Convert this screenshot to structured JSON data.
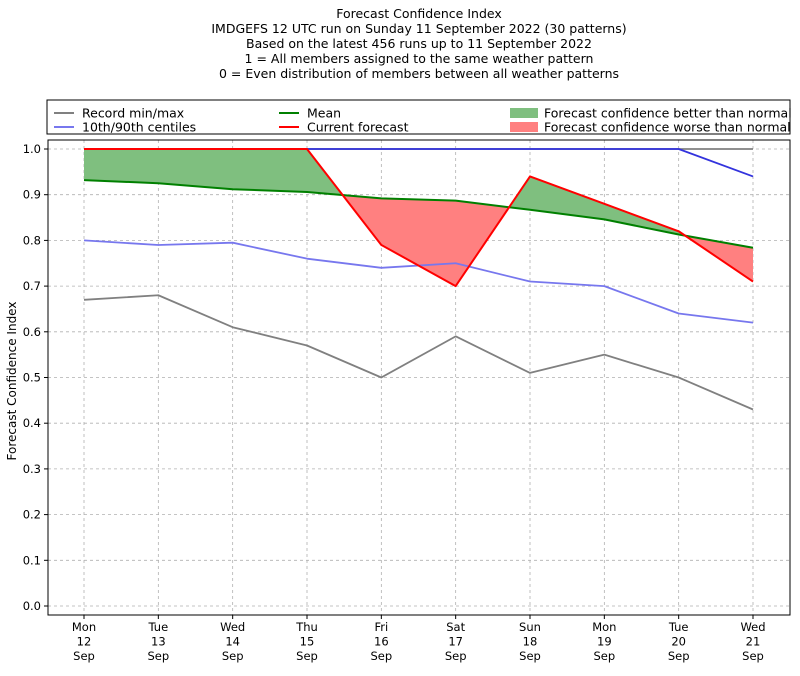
{
  "chart_data": {
    "type": "line",
    "title_lines": [
      "Forecast Confidence Index",
      "IMDGEFS 12 UTC run on Sunday 11 September 2022 (30 patterns)",
      "Based on the latest 456 runs up to 11 September 2022",
      "1 = All members assigned to the same weather pattern",
      "0 = Even distribution of members between all weather patterns"
    ],
    "ylabel": "Forecast Confidence Index",
    "xlabel": "",
    "ylim": [
      0.0,
      1.0
    ],
    "yticks": [
      "0.0",
      "0.1",
      "0.2",
      "0.3",
      "0.4",
      "0.5",
      "0.6",
      "0.7",
      "0.8",
      "0.9",
      "1.0"
    ],
    "grid": true,
    "categories": [
      [
        "Mon",
        "12",
        "Sep"
      ],
      [
        "Tue",
        "13",
        "Sep"
      ],
      [
        "Wed",
        "14",
        "Sep"
      ],
      [
        "Thu",
        "15",
        "Sep"
      ],
      [
        "Fri",
        "16",
        "Sep"
      ],
      [
        "Sat",
        "17",
        "Sep"
      ],
      [
        "Sun",
        "18",
        "Sep"
      ],
      [
        "Mon",
        "19",
        "Sep"
      ],
      [
        "Tue",
        "20",
        "Sep"
      ],
      [
        "Wed",
        "21",
        "Sep"
      ]
    ],
    "series": [
      {
        "name": "Record min/max",
        "role": "record_min",
        "color": "#808080",
        "values": [
          0.67,
          0.68,
          0.61,
          0.57,
          0.5,
          0.59,
          0.51,
          0.55,
          0.5,
          0.43
        ]
      },
      {
        "name": "Record min/max",
        "role": "record_max",
        "color": "#808080",
        "values": [
          1.0,
          1.0,
          1.0,
          1.0,
          1.0,
          1.0,
          1.0,
          1.0,
          1.0,
          1.0
        ]
      },
      {
        "name": "10th/90th centiles",
        "role": "p10",
        "color": "#7777ee",
        "values": [
          0.8,
          0.79,
          0.795,
          0.76,
          0.74,
          0.75,
          0.71,
          0.7,
          0.64,
          0.62
        ]
      },
      {
        "name": "10th/90th centiles",
        "role": "p90",
        "color": "#3333dd",
        "values": [
          1.0,
          1.0,
          1.0,
          1.0,
          1.0,
          1.0,
          1.0,
          1.0,
          1.0,
          0.94
        ]
      },
      {
        "name": "Mean",
        "role": "mean",
        "color": "#008000",
        "values": [
          0.932,
          0.925,
          0.912,
          0.906,
          0.892,
          0.887,
          0.867,
          0.846,
          0.813,
          0.784
        ]
      },
      {
        "name": "Current forecast",
        "role": "current",
        "color": "#ff0000",
        "values": [
          1.0,
          1.0,
          1.0,
          1.0,
          0.79,
          0.7,
          0.94,
          0.88,
          0.82,
          0.71
        ]
      }
    ],
    "fills": [
      {
        "name": "Forecast confidence better than normal",
        "color": "#7fbf7f"
      },
      {
        "name": "Forecast confidence worse than normal",
        "color": "#ff8080"
      }
    ],
    "legend": {
      "placement": "top",
      "entries": [
        {
          "label": "Record min/max",
          "kind": "line",
          "color": "#808080"
        },
        {
          "label": "10th/90th centiles",
          "kind": "line",
          "color": "#7777ee"
        },
        {
          "label": "Mean",
          "kind": "line",
          "color": "#008000"
        },
        {
          "label": "Current forecast",
          "kind": "line",
          "color": "#ff0000"
        },
        {
          "label": "Forecast confidence better than normal",
          "kind": "patch",
          "color": "#7fbf7f"
        },
        {
          "label": "Forecast confidence worse than normal",
          "kind": "patch",
          "color": "#ff8080"
        }
      ]
    }
  }
}
